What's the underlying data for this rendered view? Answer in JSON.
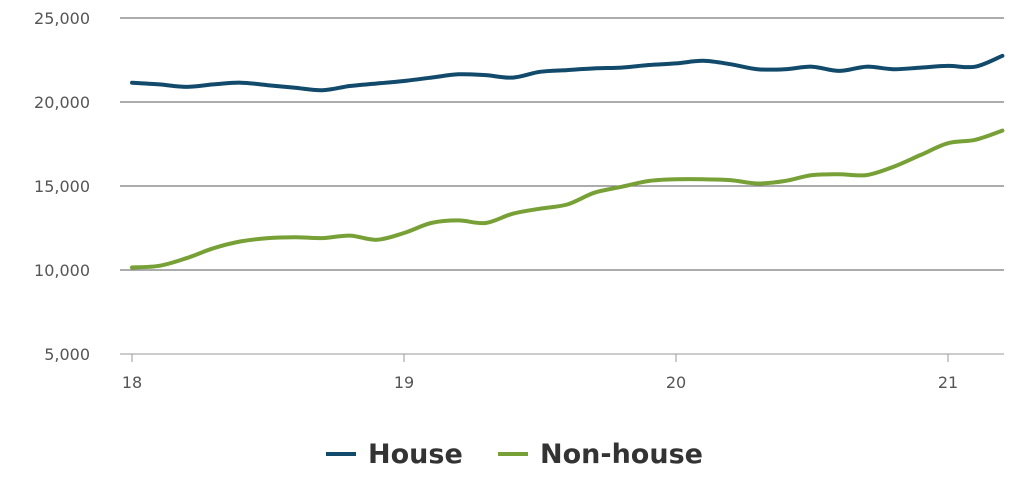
{
  "chart_data": {
    "type": "line",
    "xlim": [
      18,
      21.2
    ],
    "ylim": [
      5000,
      25000
    ],
    "x_ticks": [
      {
        "value": 18,
        "label": "18"
      },
      {
        "value": 19,
        "label": "19"
      },
      {
        "value": 20,
        "label": "20"
      },
      {
        "value": 21,
        "label": "21"
      }
    ],
    "y_ticks": [
      {
        "value": 5000,
        "label": "5,000"
      },
      {
        "value": 10000,
        "label": "10,000"
      },
      {
        "value": 15000,
        "label": "15,000"
      },
      {
        "value": 20000,
        "label": "20,000"
      },
      {
        "value": 25000,
        "label": "25,000"
      }
    ],
    "grid": "horizontal",
    "legend_position": "bottom-center",
    "series": [
      {
        "name": "House",
        "color": "#114a6b",
        "points": [
          [
            18.0,
            21150
          ],
          [
            18.1,
            21050
          ],
          [
            18.2,
            20900
          ],
          [
            18.3,
            21050
          ],
          [
            18.4,
            21150
          ],
          [
            18.5,
            21000
          ],
          [
            18.6,
            20850
          ],
          [
            18.7,
            20700
          ],
          [
            18.8,
            20950
          ],
          [
            18.9,
            21100
          ],
          [
            19.0,
            21250
          ],
          [
            19.1,
            21450
          ],
          [
            19.2,
            21650
          ],
          [
            19.3,
            21600
          ],
          [
            19.4,
            21450
          ],
          [
            19.5,
            21800
          ],
          [
            19.6,
            21900
          ],
          [
            19.7,
            22000
          ],
          [
            19.8,
            22050
          ],
          [
            19.9,
            22200
          ],
          [
            20.0,
            22300
          ],
          [
            20.1,
            22450
          ],
          [
            20.2,
            22250
          ],
          [
            20.3,
            21950
          ],
          [
            20.4,
            21950
          ],
          [
            20.5,
            22100
          ],
          [
            20.6,
            21850
          ],
          [
            20.7,
            22100
          ],
          [
            20.8,
            21950
          ],
          [
            20.9,
            22050
          ],
          [
            21.0,
            22150
          ],
          [
            21.1,
            22100
          ],
          [
            21.2,
            22750
          ]
        ]
      },
      {
        "name": "Non-house",
        "color": "#77a036",
        "points": [
          [
            18.0,
            10150
          ],
          [
            18.1,
            10250
          ],
          [
            18.2,
            10700
          ],
          [
            18.3,
            11300
          ],
          [
            18.4,
            11700
          ],
          [
            18.5,
            11900
          ],
          [
            18.6,
            11950
          ],
          [
            18.7,
            11900
          ],
          [
            18.8,
            12050
          ],
          [
            18.9,
            11800
          ],
          [
            19.0,
            12200
          ],
          [
            19.1,
            12800
          ],
          [
            19.2,
            12950
          ],
          [
            19.3,
            12800
          ],
          [
            19.4,
            13350
          ],
          [
            19.5,
            13650
          ],
          [
            19.6,
            13900
          ],
          [
            19.7,
            14600
          ],
          [
            19.8,
            14950
          ],
          [
            19.9,
            15300
          ],
          [
            20.0,
            15400
          ],
          [
            20.1,
            15400
          ],
          [
            20.2,
            15350
          ],
          [
            20.3,
            15150
          ],
          [
            20.4,
            15300
          ],
          [
            20.5,
            15650
          ],
          [
            20.6,
            15700
          ],
          [
            20.7,
            15650
          ],
          [
            20.8,
            16150
          ],
          [
            20.9,
            16850
          ],
          [
            21.0,
            17550
          ],
          [
            21.1,
            17750
          ],
          [
            21.2,
            18300
          ]
        ]
      }
    ]
  }
}
